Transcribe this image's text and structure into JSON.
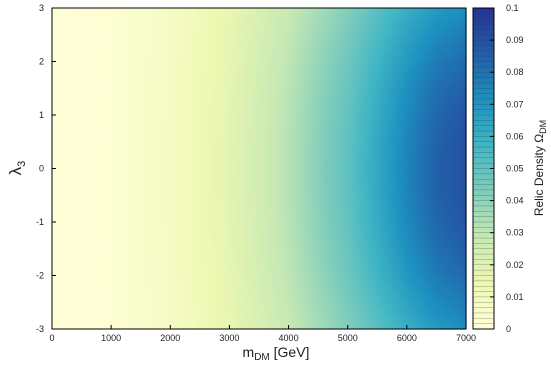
{
  "chart_data": {
    "type": "heatmap",
    "title": "",
    "xlabel_main": "m",
    "xlabel_sub": "DM",
    "xlabel_unit": " [GeV]",
    "ylabel_main": "λ",
    "ylabel_sub": "3",
    "colorbar_label_main": "Relic Density Ω",
    "colorbar_label_sub": "DM",
    "xlim": [
      0,
      7000
    ],
    "ylim": [
      -3,
      3
    ],
    "zlim": [
      0,
      0.1
    ],
    "xticks": [
      0,
      1000,
      2000,
      3000,
      4000,
      5000,
      6000,
      7000
    ],
    "yticks": [
      -3,
      -2,
      -1,
      0,
      1,
      2,
      3
    ],
    "cticks": [
      0,
      0.01,
      0.02,
      0.03,
      0.04,
      0.05,
      0.06,
      0.07,
      0.08,
      0.09,
      0.1
    ],
    "colormap": [
      "#ffffd9",
      "#edf8b1",
      "#c7e9b4",
      "#7fcdbb",
      "#41b6c4",
      "#1d91c0",
      "#225ea8",
      "#253494"
    ],
    "relic_density_profile": {
      "lambda3": [
        -3,
        0,
        3
      ],
      "description_points_x": [
        0,
        1000,
        2000,
        3000,
        4000,
        5000,
        6000,
        6500,
        7000
      ],
      "values_at_lambda0": [
        0.0005,
        0.002,
        0.008,
        0.018,
        0.032,
        0.05,
        0.075,
        0.085,
        0.09
      ],
      "values_at_lambda_edge": [
        0.0005,
        0.002,
        0.007,
        0.016,
        0.028,
        0.042,
        0.06,
        0.068,
        0.072
      ]
    }
  }
}
